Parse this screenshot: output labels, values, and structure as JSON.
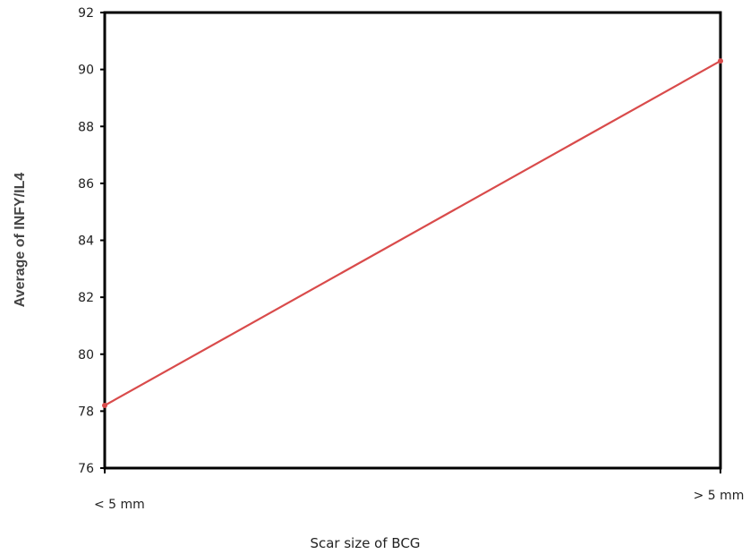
{
  "chart_data": {
    "type": "line",
    "categories": [
      "< 5 mm",
      "> 5 mm"
    ],
    "series": [
      {
        "values": [
          78.2,
          90.3
        ]
      }
    ],
    "xlabel": "Scar size of BCG",
    "ylabel": "Average of INFY/IL4",
    "ylim": [
      76,
      92
    ],
    "yticks": [
      76,
      78,
      80,
      82,
      84,
      86,
      88,
      90,
      92
    ],
    "grid": false,
    "line_color": "#d94b4b"
  }
}
